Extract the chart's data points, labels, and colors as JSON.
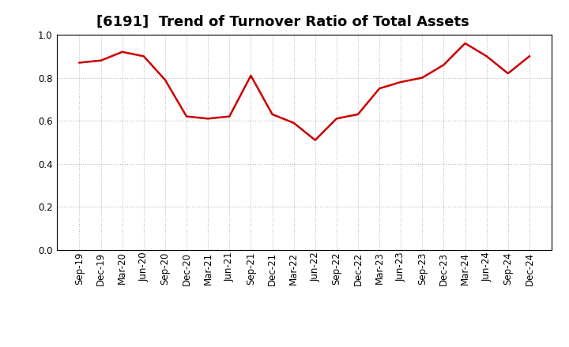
{
  "title": "[6191]  Trend of Turnover Ratio of Total Assets",
  "x_labels": [
    "Sep-19",
    "Dec-19",
    "Mar-20",
    "Jun-20",
    "Sep-20",
    "Dec-20",
    "Mar-21",
    "Jun-21",
    "Sep-21",
    "Dec-21",
    "Mar-22",
    "Jun-22",
    "Sep-22",
    "Dec-22",
    "Mar-23",
    "Jun-23",
    "Sep-23",
    "Dec-23",
    "Mar-24",
    "Jun-24",
    "Sep-24",
    "Dec-24"
  ],
  "y_values": [
    0.87,
    0.88,
    0.92,
    0.9,
    0.79,
    0.62,
    0.61,
    0.62,
    0.81,
    0.63,
    0.59,
    0.51,
    0.61,
    0.63,
    0.75,
    0.78,
    0.8,
    0.86,
    0.96,
    0.9,
    0.82,
    0.9
  ],
  "line_color": "#cc0000",
  "background_color": "#ffffff",
  "plot_bg_color": "#ffffff",
  "grid_color": "#bbbbbb",
  "ylim": [
    0.0,
    1.0
  ],
  "yticks": [
    0.0,
    0.2,
    0.4,
    0.6,
    0.8,
    1.0
  ],
  "title_fontsize": 13,
  "tick_fontsize": 8.5,
  "line_width": 1.8
}
